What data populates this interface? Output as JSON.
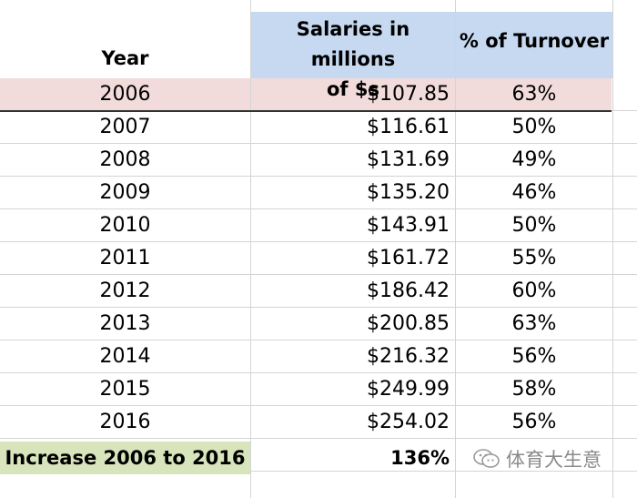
{
  "headers": {
    "year": "Year",
    "salaries": "Salaries in millions\nof $s",
    "turnover": "% of Turnover"
  },
  "rows": [
    {
      "year": "2006",
      "salary": "$107.85",
      "pct": "63%"
    },
    {
      "year": "2007",
      "salary": "$116.61",
      "pct": "50%"
    },
    {
      "year": "2008",
      "salary": "$131.69",
      "pct": "49%"
    },
    {
      "year": "2009",
      "salary": "$135.20",
      "pct": "46%"
    },
    {
      "year": "2010",
      "salary": "$143.91",
      "pct": "50%"
    },
    {
      "year": "2011",
      "salary": "$161.72",
      "pct": "55%"
    },
    {
      "year": "2012",
      "salary": "$186.42",
      "pct": "60%"
    },
    {
      "year": "2013",
      "salary": "$200.85",
      "pct": "63%"
    },
    {
      "year": "2014",
      "salary": "$216.32",
      "pct": "56%"
    },
    {
      "year": "2015",
      "salary": "$249.99",
      "pct": "58%"
    },
    {
      "year": "2016",
      "salary": "$254.02",
      "pct": "56%"
    }
  ],
  "footer": {
    "label": "Increase 2006 to 2016",
    "value": "136%"
  },
  "watermark": {
    "text": "体育大生意",
    "icon": "wechat-bubble-icon"
  },
  "colors": {
    "header_blue": "#c6d9f1",
    "highlight_pink": "#f2dcdb",
    "footer_green": "#d8e4bc"
  }
}
